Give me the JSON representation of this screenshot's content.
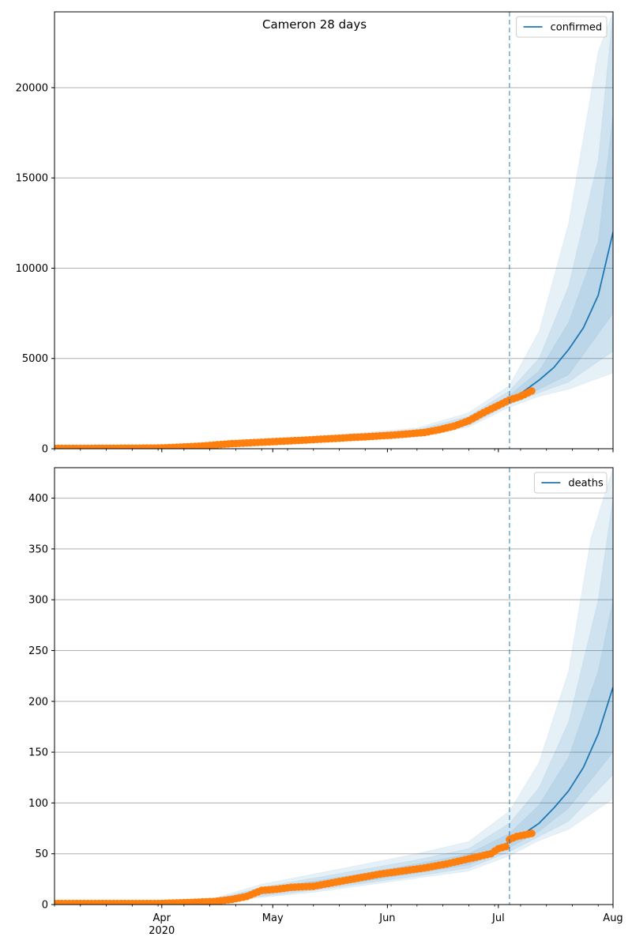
{
  "title": "Cameron 28 days",
  "colors": {
    "line": "#1f77b4",
    "points": "#ff7f0e",
    "band": "#1f77b4",
    "grid": "#b0b0b0",
    "axis": "#000000"
  },
  "chart_data": [
    {
      "type": "line",
      "legend": "confirmed",
      "legend_position": "top-right",
      "grid": "y",
      "x_range": [
        "2020-03-03",
        "2020-08-01"
      ],
      "ylim": [
        0,
        24200
      ],
      "yticks": [
        0,
        5000,
        10000,
        15000,
        20000
      ],
      "vline": "2020-07-04",
      "observed": [
        [
          "2020-03-03",
          20
        ],
        [
          "2020-03-10",
          20
        ],
        [
          "2020-03-17",
          25
        ],
        [
          "2020-03-24",
          30
        ],
        [
          "2020-03-31",
          40
        ],
        [
          "2020-04-04",
          70
        ],
        [
          "2020-04-08",
          110
        ],
        [
          "2020-04-12",
          150
        ],
        [
          "2020-04-16",
          220
        ],
        [
          "2020-04-20",
          280
        ],
        [
          "2020-04-24",
          320
        ],
        [
          "2020-04-28",
          360
        ],
        [
          "2020-05-02",
          400
        ],
        [
          "2020-05-06",
          440
        ],
        [
          "2020-05-10",
          480
        ],
        [
          "2020-05-14",
          530
        ],
        [
          "2020-05-18",
          570
        ],
        [
          "2020-05-22",
          620
        ],
        [
          "2020-05-26",
          660
        ],
        [
          "2020-05-30",
          710
        ],
        [
          "2020-06-03",
          760
        ],
        [
          "2020-06-07",
          830
        ],
        [
          "2020-06-11",
          900
        ],
        [
          "2020-06-15",
          1050
        ],
        [
          "2020-06-19",
          1250
        ],
        [
          "2020-06-23",
          1550
        ],
        [
          "2020-06-27",
          2000
        ],
        [
          "2020-07-01",
          2400
        ],
        [
          "2020-07-04",
          2700
        ],
        [
          "2020-07-07",
          2900
        ],
        [
          "2020-07-10",
          3200
        ]
      ],
      "forecast": [
        [
          "2020-03-03",
          20
        ],
        [
          "2020-03-17",
          25
        ],
        [
          "2020-03-31",
          45
        ],
        [
          "2020-04-14",
          180
        ],
        [
          "2020-04-28",
          360
        ],
        [
          "2020-05-12",
          500
        ],
        [
          "2020-05-26",
          660
        ],
        [
          "2020-06-09",
          870
        ],
        [
          "2020-06-16",
          1050
        ],
        [
          "2020-06-23",
          1500
        ],
        [
          "2020-06-30",
          2200
        ],
        [
          "2020-07-04",
          2700
        ],
        [
          "2020-07-08",
          3200
        ],
        [
          "2020-07-12",
          3800
        ],
        [
          "2020-07-16",
          4500
        ],
        [
          "2020-07-20",
          5500
        ],
        [
          "2020-07-24",
          6700
        ],
        [
          "2020-07-28",
          8500
        ],
        [
          "2020-08-01",
          12000
        ]
      ],
      "bands": [
        {
          "lower": [
            [
              "2020-03-03",
              0
            ],
            [
              "2020-04-14",
              120
            ],
            [
              "2020-05-12",
              400
            ],
            [
              "2020-06-09",
              650
            ],
            [
              "2020-06-23",
              1200
            ],
            [
              "2020-07-04",
              2300
            ],
            [
              "2020-07-12",
              2900
            ],
            [
              "2020-07-20",
              3300
            ],
            [
              "2020-08-01",
              4200
            ]
          ],
          "upper": [
            [
              "2020-03-03",
              60
            ],
            [
              "2020-04-14",
              260
            ],
            [
              "2020-05-12",
              650
            ],
            [
              "2020-06-09",
              1150
            ],
            [
              "2020-06-23",
              2000
            ],
            [
              "2020-07-04",
              3500
            ],
            [
              "2020-07-12",
              6500
            ],
            [
              "2020-07-20",
              12500
            ],
            [
              "2020-07-28",
              22000
            ],
            [
              "2020-08-01",
              24200
            ]
          ]
        },
        {
          "lower": [
            [
              "2020-03-03",
              0
            ],
            [
              "2020-04-14",
              140
            ],
            [
              "2020-05-12",
              430
            ],
            [
              "2020-06-09",
              720
            ],
            [
              "2020-06-23",
              1300
            ],
            [
              "2020-07-04",
              2450
            ],
            [
              "2020-07-12",
              3100
            ],
            [
              "2020-07-20",
              3700
            ],
            [
              "2020-08-01",
              5400
            ]
          ],
          "upper": [
            [
              "2020-03-03",
              45
            ],
            [
              "2020-04-14",
              230
            ],
            [
              "2020-05-12",
              600
            ],
            [
              "2020-06-09",
              1050
            ],
            [
              "2020-06-23",
              1800
            ],
            [
              "2020-07-04",
              3200
            ],
            [
              "2020-07-12",
              5000
            ],
            [
              "2020-07-20",
              9000
            ],
            [
              "2020-07-28",
              16000
            ],
            [
              "2020-08-01",
              24200
            ]
          ]
        },
        {
          "lower": [
            [
              "2020-03-03",
              5
            ],
            [
              "2020-04-14",
              155
            ],
            [
              "2020-05-12",
              460
            ],
            [
              "2020-06-09",
              780
            ],
            [
              "2020-06-23",
              1380
            ],
            [
              "2020-07-04",
              2550
            ],
            [
              "2020-07-12",
              3300
            ],
            [
              "2020-07-20",
              4100
            ],
            [
              "2020-08-01",
              7500
            ]
          ],
          "upper": [
            [
              "2020-03-03",
              35
            ],
            [
              "2020-04-14",
              205
            ],
            [
              "2020-05-12",
              560
            ],
            [
              "2020-06-09",
              970
            ],
            [
              "2020-06-23",
              1650
            ],
            [
              "2020-07-04",
              2950
            ],
            [
              "2020-07-12",
              4300
            ],
            [
              "2020-07-20",
              7000
            ],
            [
              "2020-07-28",
              11500
            ],
            [
              "2020-08-01",
              18500
            ]
          ]
        }
      ]
    },
    {
      "type": "line",
      "legend": "deaths",
      "legend_position": "top-right",
      "grid": "y",
      "x_range": [
        "2020-03-03",
        "2020-08-01"
      ],
      "ylim": [
        0,
        430
      ],
      "yticks": [
        0,
        50,
        100,
        150,
        200,
        250,
        300,
        350,
        400
      ],
      "vline": "2020-07-04",
      "x_tick_labels": [
        {
          "date": "2020-04-01",
          "label": "Apr"
        },
        {
          "date": "2020-05-01",
          "label": "May"
        },
        {
          "date": "2020-06-01",
          "label": "Jun"
        },
        {
          "date": "2020-07-01",
          "label": "Jul"
        },
        {
          "date": "2020-08-01",
          "label": "Aug"
        }
      ],
      "x_year_label": "2020",
      "observed": [
        [
          "2020-03-03",
          1
        ],
        [
          "2020-03-15",
          1
        ],
        [
          "2020-03-31",
          1
        ],
        [
          "2020-04-08",
          2
        ],
        [
          "2020-04-15",
          3
        ],
        [
          "2020-04-20",
          5
        ],
        [
          "2020-04-24",
          8
        ],
        [
          "2020-04-28",
          14
        ],
        [
          "2020-05-02",
          15
        ],
        [
          "2020-05-06",
          17
        ],
        [
          "2020-05-12",
          18
        ],
        [
          "2020-05-18",
          22
        ],
        [
          "2020-05-24",
          26
        ],
        [
          "2020-05-30",
          30
        ],
        [
          "2020-06-05",
          33
        ],
        [
          "2020-06-11",
          36
        ],
        [
          "2020-06-17",
          40
        ],
        [
          "2020-06-23",
          45
        ],
        [
          "2020-06-29",
          50
        ],
        [
          "2020-07-01",
          55
        ],
        [
          "2020-07-03",
          57
        ],
        [
          "2020-07-04",
          64
        ],
        [
          "2020-07-06",
          67
        ],
        [
          "2020-07-10",
          70
        ]
      ],
      "forecast": [
        [
          "2020-03-03",
          1
        ],
        [
          "2020-03-31",
          1
        ],
        [
          "2020-04-14",
          3
        ],
        [
          "2020-04-28",
          12
        ],
        [
          "2020-05-12",
          19
        ],
        [
          "2020-05-26",
          27
        ],
        [
          "2020-06-09",
          35
        ],
        [
          "2020-06-23",
          44
        ],
        [
          "2020-06-30",
          52
        ],
        [
          "2020-07-04",
          62
        ],
        [
          "2020-07-08",
          70
        ],
        [
          "2020-07-12",
          80
        ],
        [
          "2020-07-16",
          95
        ],
        [
          "2020-07-20",
          112
        ],
        [
          "2020-07-24",
          135
        ],
        [
          "2020-07-28",
          168
        ],
        [
          "2020-08-01",
          214
        ]
      ],
      "bands": [
        {
          "lower": [
            [
              "2020-03-03",
              0
            ],
            [
              "2020-04-14",
              1
            ],
            [
              "2020-04-28",
              7
            ],
            [
              "2020-05-12",
              12
            ],
            [
              "2020-05-26",
              19
            ],
            [
              "2020-06-09",
              26
            ],
            [
              "2020-06-23",
              33
            ],
            [
              "2020-07-04",
              48
            ],
            [
              "2020-07-12",
              63
            ],
            [
              "2020-07-20",
              74
            ],
            [
              "2020-08-01",
              104
            ]
          ],
          "upper": [
            [
              "2020-03-03",
              2
            ],
            [
              "2020-04-14",
              5
            ],
            [
              "2020-04-28",
              20
            ],
            [
              "2020-05-12",
              30
            ],
            [
              "2020-05-26",
              40
            ],
            [
              "2020-06-09",
              50
            ],
            [
              "2020-06-23",
              62
            ],
            [
              "2020-07-04",
              92
            ],
            [
              "2020-07-12",
              140
            ],
            [
              "2020-07-20",
              230
            ],
            [
              "2020-07-26",
              360
            ],
            [
              "2020-08-01",
              430
            ]
          ]
        },
        {
          "lower": [
            [
              "2020-03-03",
              0
            ],
            [
              "2020-04-14",
              2
            ],
            [
              "2020-04-28",
              8
            ],
            [
              "2020-05-12",
              14
            ],
            [
              "2020-05-26",
              21
            ],
            [
              "2020-06-09",
              28
            ],
            [
              "2020-06-23",
              36
            ],
            [
              "2020-07-04",
              52
            ],
            [
              "2020-07-12",
              67
            ],
            [
              "2020-07-20",
              82
            ],
            [
              "2020-08-01",
              128
            ]
          ],
          "upper": [
            [
              "2020-03-03",
              2
            ],
            [
              "2020-04-14",
              4
            ],
            [
              "2020-04-28",
              17
            ],
            [
              "2020-05-12",
              26
            ],
            [
              "2020-05-26",
              35
            ],
            [
              "2020-06-09",
              44
            ],
            [
              "2020-06-23",
              55
            ],
            [
              "2020-07-04",
              80
            ],
            [
              "2020-07-12",
              115
            ],
            [
              "2020-07-20",
              180
            ],
            [
              "2020-07-28",
              300
            ],
            [
              "2020-08-01",
              400
            ]
          ]
        },
        {
          "lower": [
            [
              "2020-03-03",
              0
            ],
            [
              "2020-04-14",
              2
            ],
            [
              "2020-04-28",
              10
            ],
            [
              "2020-05-12",
              16
            ],
            [
              "2020-05-26",
              23
            ],
            [
              "2020-06-09",
              31
            ],
            [
              "2020-06-23",
              39
            ],
            [
              "2020-07-04",
              56
            ],
            [
              "2020-07-12",
              72
            ],
            [
              "2020-07-20",
              95
            ],
            [
              "2020-08-01",
              150
            ]
          ],
          "upper": [
            [
              "2020-03-03",
              1
            ],
            [
              "2020-04-14",
              4
            ],
            [
              "2020-04-28",
              15
            ],
            [
              "2020-05-12",
              23
            ],
            [
              "2020-05-26",
              31
            ],
            [
              "2020-06-09",
              40
            ],
            [
              "2020-06-23",
              50
            ],
            [
              "2020-07-04",
              70
            ],
            [
              "2020-07-12",
              98
            ],
            [
              "2020-07-20",
              145
            ],
            [
              "2020-07-28",
              230
            ],
            [
              "2020-08-01",
              300
            ]
          ]
        }
      ]
    }
  ]
}
